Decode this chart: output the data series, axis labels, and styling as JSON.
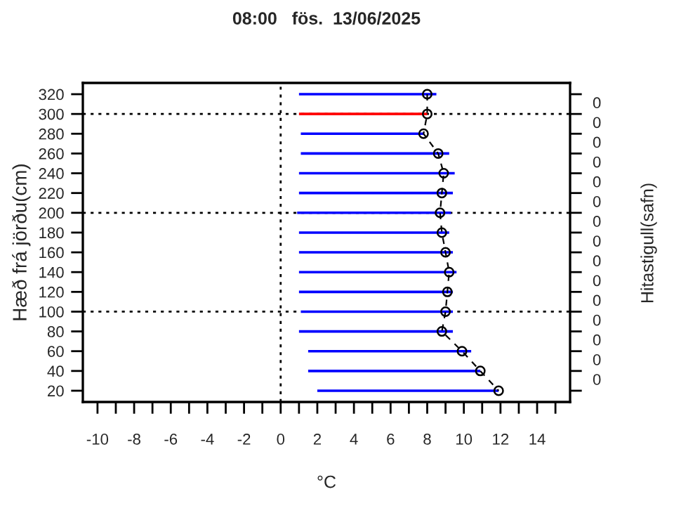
{
  "chart_data": {
    "type": "line",
    "title": "08:00   fös.  13/06/2025",
    "xlabel": "°C",
    "ylabel": "Hæð frá jörðu(cm)",
    "y2label": "Hitastigull(safn)",
    "series": [
      {
        "color": "#000000",
        "marker": "circle",
        "line_style": "dashed",
        "x": [
          8.0,
          8.0,
          7.8,
          8.6,
          8.9,
          8.8,
          8.7,
          8.8,
          9.0,
          9.2,
          9.1,
          9.0,
          8.8,
          9.9,
          10.9,
          11.9
        ],
        "values": [
          320,
          300,
          280,
          260,
          240,
          220,
          200,
          180,
          160,
          140,
          120,
          100,
          80,
          60,
          40,
          20
        ],
        "xerrors": [
          [
            1.0,
            8.5
          ],
          [
            1.0,
            8.0
          ],
          [
            1.1,
            7.8
          ],
          [
            1.1,
            9.2
          ],
          [
            1.0,
            9.5
          ],
          [
            1.0,
            9.4
          ],
          [
            0.9,
            9.3
          ],
          [
            1.0,
            9.2
          ],
          [
            1.0,
            9.4
          ],
          [
            1.0,
            9.6
          ],
          [
            1.0,
            9.4
          ],
          [
            1.1,
            9.4
          ],
          [
            1.0,
            9.4
          ],
          [
            1.5,
            10.4
          ],
          [
            1.5,
            10.9
          ],
          [
            2.0,
            11.9
          ]
        ],
        "colors": [
          "#0000ff",
          "#ff0000",
          "#0000ff",
          "#0000ff",
          "#0000ff",
          "#0000ff",
          "#0000ff",
          "#0000ff",
          "#0000ff",
          "#0000ff",
          "#0000ff",
          "#0000ff",
          "#0000ff",
          "#0000ff",
          "#0000ff",
          "#0000ff"
        ]
      }
    ],
    "xlim": [
      -10.8,
      15.8
    ],
    "xticks": [
      -10,
      {
        "value": -9,
        "label": null
      },
      -8,
      {
        "value": -7,
        "label": null
      },
      -6,
      {
        "value": -5,
        "label": null
      },
      -4,
      {
        "value": -3,
        "label": null
      },
      -2,
      {
        "value": -1,
        "label": null
      },
      0,
      {
        "value": 1,
        "label": null
      },
      2,
      {
        "value": 3,
        "label": null
      },
      4,
      {
        "value": 5,
        "label": null
      },
      6,
      {
        "value": 7,
        "label": null
      },
      8,
      {
        "value": 9,
        "label": null
      },
      10,
      {
        "value": 11,
        "label": null
      },
      12,
      {
        "value": 13,
        "label": null
      },
      14,
      {
        "value": 15,
        "label": null
      }
    ],
    "ylim": [
      8.6,
      331.4
    ],
    "yticks": [
      20,
      40,
      60,
      80,
      100,
      120,
      140,
      160,
      180,
      200,
      220,
      240,
      260,
      280,
      300,
      320
    ],
    "annotations": [
      "0",
      "0",
      "0",
      "0",
      "0",
      "0",
      "0",
      "0",
      "0",
      "0",
      "0",
      "0",
      "0",
      "0",
      "0"
    ],
    "ref_lines": [
      {
        "axis": "x",
        "value": 0,
        "line_style": "dotted",
        "color": "#000000"
      },
      {
        "axis": "y",
        "value": 100,
        "line_style": "dotted",
        "color": "#000000"
      },
      {
        "axis": "y",
        "value": 200,
        "line_style": "dotted",
        "color": "#000000"
      },
      {
        "axis": "y",
        "value": 300,
        "line_style": "dotted",
        "color": "#000000"
      }
    ],
    "grid": false,
    "legend": false
  }
}
